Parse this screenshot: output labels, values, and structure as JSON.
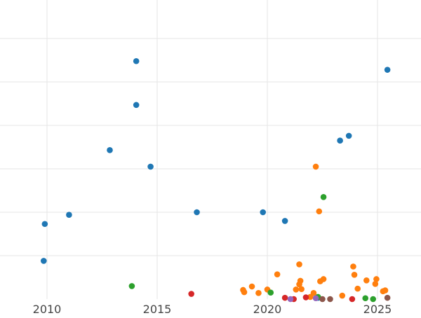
{
  "chart_data": {
    "type": "scatter",
    "title": "",
    "xlabel": "",
    "ylabel": "",
    "xlim": [
      2008,
      2027
    ],
    "ylim": [
      0,
      7
    ],
    "x_ticks": [
      2010,
      2015,
      2020,
      2025
    ],
    "x_tick_labels": [
      "2010",
      "2015",
      "2020",
      "2025"
    ],
    "y_gridlines": [
      1,
      2,
      3,
      4,
      5,
      6,
      7
    ],
    "grid": true,
    "legend": "none",
    "series": [
      {
        "color": "#1f77b4",
        "points": [
          [
            2009.85,
            0.88
          ],
          [
            2009.9,
            1.73
          ],
          [
            2011.0,
            1.94
          ],
          [
            2012.85,
            3.43
          ],
          [
            2014.05,
            5.48
          ],
          [
            2014.05,
            4.47
          ],
          [
            2014.7,
            3.05
          ],
          [
            2016.8,
            2.0
          ],
          [
            2019.8,
            2.0
          ],
          [
            2020.8,
            1.8
          ],
          [
            2023.3,
            3.65
          ],
          [
            2023.7,
            3.76
          ],
          [
            2025.45,
            5.28
          ],
          [
            2022.3,
            0.03
          ]
        ]
      },
      {
        "color": "#ff7f0e",
        "points": [
          [
            2018.9,
            0.21
          ],
          [
            2018.95,
            0.16
          ],
          [
            2019.3,
            0.29
          ],
          [
            2019.6,
            0.14
          ],
          [
            2020.0,
            0.22
          ],
          [
            2020.45,
            0.57
          ],
          [
            2021.3,
            0.22
          ],
          [
            2021.45,
            0.34
          ],
          [
            2021.5,
            0.42
          ],
          [
            2021.55,
            0.23
          ],
          [
            2021.45,
            0.8
          ],
          [
            2022.2,
            3.05
          ],
          [
            2022.35,
            2.02
          ],
          [
            2021.95,
            0.05
          ],
          [
            2022.1,
            0.14
          ],
          [
            2022.4,
            0.41
          ],
          [
            2022.55,
            0.46
          ],
          [
            2023.4,
            0.08
          ],
          [
            2023.9,
            0.75
          ],
          [
            2023.95,
            0.56
          ],
          [
            2024.1,
            0.24
          ],
          [
            2024.5,
            0.43
          ],
          [
            2024.9,
            0.35
          ],
          [
            2024.95,
            0.46
          ],
          [
            2025.25,
            0.18
          ],
          [
            2025.35,
            0.2
          ]
        ]
      },
      {
        "color": "#2ca02c",
        "points": [
          [
            2013.85,
            0.3
          ],
          [
            2020.15,
            0.15
          ],
          [
            2022.3,
            0.05
          ],
          [
            2022.55,
            2.35
          ],
          [
            2024.45,
            0.02
          ],
          [
            2024.8,
            0.0
          ]
        ]
      },
      {
        "color": "#d62728",
        "points": [
          [
            2016.55,
            0.12
          ],
          [
            2020.8,
            0.03
          ],
          [
            2021.2,
            0.0
          ],
          [
            2021.75,
            0.04
          ],
          [
            2023.85,
            0.0
          ]
        ]
      },
      {
        "color": "#9467bd",
        "points": [
          [
            2021.05,
            0.0
          ],
          [
            2022.2,
            0.02
          ]
        ]
      },
      {
        "color": "#8c564b",
        "points": [
          [
            2022.5,
            0.0
          ],
          [
            2022.85,
            0.0
          ],
          [
            2025.45,
            0.03
          ]
        ]
      }
    ]
  }
}
